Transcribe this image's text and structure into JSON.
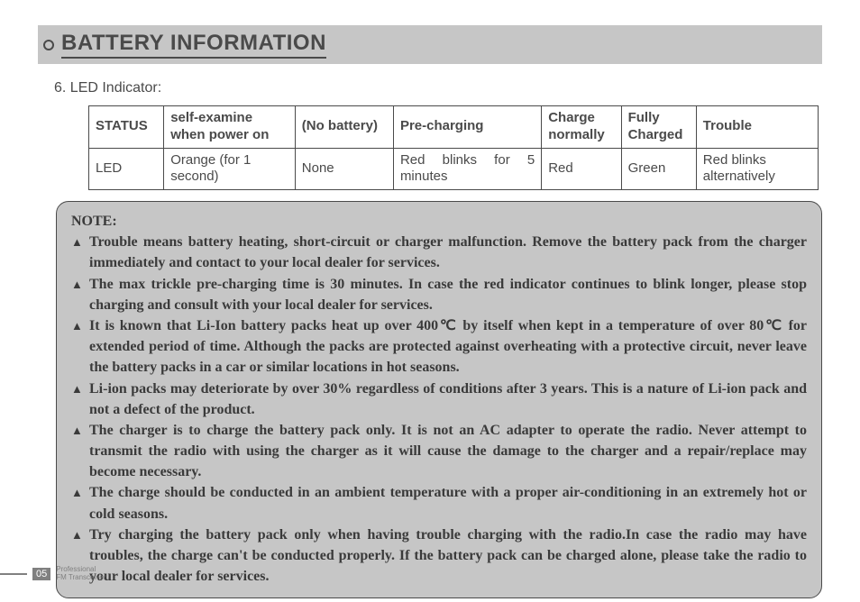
{
  "header": {
    "title": "BATTERY INFORMATION"
  },
  "section": {
    "label": "6. LED Indicator:"
  },
  "table": {
    "headers": {
      "c0": "STATUS",
      "c1": "self-examine when power on",
      "c2": "(No battery)",
      "c3": "Pre-charging",
      "c4": "Charge normally",
      "c5": "Fully Charged",
      "c6": "Trouble"
    },
    "row": {
      "c0": "LED",
      "c1": "Orange (for 1 second)",
      "c2": "None",
      "c3": "Red blinks for 5 minutes",
      "c4": "Red",
      "c5": "Green",
      "c6": "Red blinks alternatively"
    },
    "col_widths": [
      "80px",
      "140px",
      "105px",
      "158px",
      "85px",
      "80px",
      "130px"
    ]
  },
  "note": {
    "heading": "NOTE:",
    "items": [
      "Trouble means battery heating, short-circuit or charger malfunction. Remove the battery pack from the charger immediately and contact to your local dealer for services.",
      "The max trickle pre-charging time is 30 minutes. In case the red indicator continues to blink longer, please stop charging and consult with your local dealer for services.",
      "It is known that Li-Ion battery packs heat up over 400℃ by itself when kept in a temperature of over 80℃ for extended period of time. Although the packs are protected against overheating with a protective circuit, never leave the battery packs in a car or similar locations in hot seasons.",
      "Li-ion packs may deteriorate by over 30% regardless of conditions after 3 years. This is a nature of Li-ion pack and not a defect of the product.",
      "The charger is to charge the battery pack only. It is not an AC adapter to operate the radio. Never attempt to transmit the radio with using the charger as it will cause the damage to the charger and a repair/replace may become necessary.",
      "The charge should be conducted in an ambient temperature with a proper air-conditioning in an extremely hot or cold seasons.",
      "Try charging the battery pack only when having trouble charging with the radio.In case the radio may have troubles, the charge can't be conducted properly. If the battery pack can be charged alone, please take the radio to your local dealer for services."
    ]
  },
  "footer": {
    "page": "05",
    "line1": "Professional",
    "line2": "FM Transceiver"
  },
  "colors": {
    "header_bg": "#c6c6c6",
    "note_bg": "#c6c6c6",
    "text": "#4a4a4a",
    "footer_gray": "#808080"
  }
}
